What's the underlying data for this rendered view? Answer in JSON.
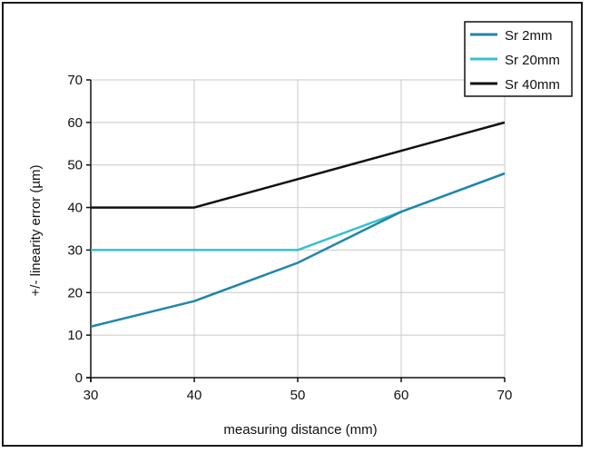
{
  "chart_data": {
    "type": "line",
    "title": "",
    "xlabel": "measuring distance (mm)",
    "ylabel": "+/- linearity error (µm)",
    "xlim": [
      30,
      70
    ],
    "ylim": [
      0,
      70
    ],
    "xticks": [
      30,
      40,
      50,
      60,
      70
    ],
    "yticks": [
      0,
      10,
      20,
      30,
      40,
      50,
      60,
      70
    ],
    "grid": true,
    "legend_position": "top-right",
    "series": [
      {
        "name": "Sr 2mm",
        "color": "#1f86a8",
        "x": [
          30,
          40,
          50,
          60,
          70
        ],
        "y": [
          12,
          18,
          27,
          39,
          48
        ]
      },
      {
        "name": "Sr 20mm",
        "color": "#37c0cf",
        "x": [
          30,
          40,
          50,
          60,
          70
        ],
        "y": [
          30,
          30,
          30,
          39,
          48
        ]
      },
      {
        "name": "Sr 40mm",
        "color": "#111111",
        "x": [
          30,
          40,
          70
        ],
        "y": [
          40,
          40,
          60
        ]
      }
    ]
  }
}
